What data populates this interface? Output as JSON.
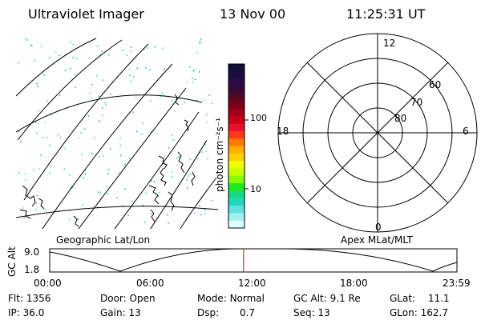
{
  "header": {
    "instrument": "Ultraviolet Imager",
    "date": "13 Nov 00",
    "time": "11:25:31 UT"
  },
  "colorbar": {
    "unit_label": "photon cm⁻²s⁻¹",
    "ticks": [
      "100",
      "10"
    ],
    "colors": [
      "#101035",
      "#1a0e40",
      "#2b0a4a",
      "#3a0834",
      "#5a0620",
      "#7a0018",
      "#a0001a",
      "#c80018",
      "#e8102a",
      "#ff3a1a",
      "#ff7a00",
      "#ffb000",
      "#ffd000",
      "#f0ff00",
      "#c8ff00",
      "#88ff00",
      "#20e820",
      "#18d880",
      "#20d8c0",
      "#60e0e0",
      "#a0f0f0",
      "#e0ffff"
    ]
  },
  "left_panel": {
    "label": "Geographic Lat/Lon"
  },
  "right_panel": {
    "label": "Apex MLat/MLT",
    "mlt_labels": {
      "top": "12",
      "bottom": "0",
      "left": "18",
      "right": "6"
    },
    "mlat_labels": [
      "60",
      "70",
      "80"
    ]
  },
  "gc_plot": {
    "ylabel": "GC Alt",
    "ytick_top": "9.0",
    "ytick_bottom": "1.8",
    "x_ticks": [
      "00:00",
      "06:00",
      "12:00",
      "18:00",
      "23:59"
    ],
    "current_time_hours": 11.425
  },
  "footer": {
    "row1": [
      {
        "key": "Flt:",
        "val": "1356"
      },
      {
        "key": "Door:",
        "val": "Open"
      },
      {
        "key": "Mode:",
        "val": "Normal"
      },
      {
        "key": "GC Alt:",
        "val": "9.1 Re"
      },
      {
        "key": "GLat:",
        "val": "11.1"
      }
    ],
    "row2": [
      {
        "key": "IP:",
        "val": "36.0"
      },
      {
        "key": "Gain:",
        "val": "13"
      },
      {
        "key": "Dsp:",
        "val": "0.7"
      },
      {
        "key": "Seq:",
        "val": "13"
      },
      {
        "key": "GLon:",
        "val": "162.7"
      }
    ]
  }
}
